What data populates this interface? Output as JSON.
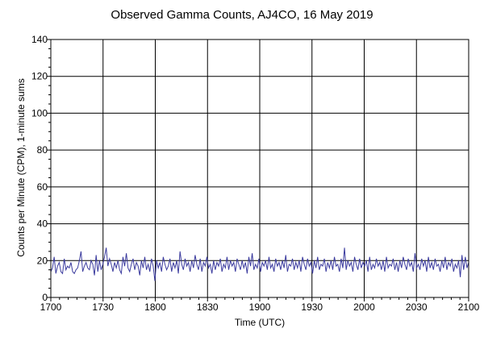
{
  "chart_data": {
    "type": "line",
    "title": "Observed Gamma Counts, AJ4CO, 16 May 2019",
    "xlabel": "Time (UTC)",
    "ylabel": "Counts per Minute (CPM), 1-minute sums",
    "x_tick_labels": [
      "1700",
      "1730",
      "1800",
      "1830",
      "1900",
      "1930",
      "2000",
      "2030",
      "2100"
    ],
    "y_tick_labels": [
      "0",
      "20",
      "40",
      "60",
      "80",
      "100",
      "120",
      "140"
    ],
    "xlim_minutes_after_1700": [
      0,
      240
    ],
    "ylim": [
      0,
      140
    ],
    "grid": true,
    "series_color": "#3b3b9e",
    "series": [
      {
        "values": [
          14,
          16,
          22,
          13,
          17,
          19,
          14,
          13,
          21,
          15,
          17,
          16,
          19,
          14,
          13,
          15,
          16,
          20,
          25,
          14,
          17,
          19,
          16,
          15,
          20,
          18,
          12,
          23,
          14,
          20,
          15,
          18,
          22,
          27,
          17,
          21,
          18,
          14,
          19,
          16,
          20,
          15,
          13,
          22,
          17,
          24,
          16,
          14,
          18,
          21,
          15,
          19,
          17,
          12,
          20,
          16,
          22,
          15,
          18,
          14,
          21,
          17,
          9,
          20,
          16,
          19,
          14,
          22,
          18,
          15,
          17,
          21,
          14,
          19,
          16,
          20,
          13,
          25,
          18,
          15,
          21,
          17,
          19,
          14,
          20,
          16,
          23,
          18,
          15,
          21,
          14,
          19,
          17,
          22,
          16,
          18,
          13,
          20,
          15,
          19,
          17,
          21,
          14,
          18,
          16,
          22,
          15,
          20,
          17,
          19,
          14,
          21,
          18,
          15,
          20,
          16,
          19,
          13,
          22,
          17,
          24,
          15,
          18,
          16,
          21,
          14,
          19,
          17,
          20,
          15,
          22,
          16,
          18,
          14,
          21,
          17,
          19,
          15,
          20,
          16,
          23,
          14,
          18,
          17,
          21,
          15,
          19,
          16,
          20,
          14,
          22,
          18,
          15,
          21,
          17,
          19,
          13,
          20,
          16,
          22,
          15,
          18,
          17,
          21,
          14,
          19,
          16,
          20,
          15,
          22,
          17,
          18,
          14,
          21,
          16,
          27,
          15,
          20,
          17,
          19,
          14,
          22,
          18,
          15,
          21,
          16,
          19,
          17,
          20,
          14,
          22,
          15,
          18,
          16,
          21,
          17,
          19,
          15,
          20,
          14,
          22,
          16,
          18,
          17,
          21,
          15,
          19,
          14,
          20,
          16,
          22,
          18,
          15,
          21,
          17,
          19,
          14,
          24,
          16,
          18,
          15,
          21,
          17,
          20,
          14,
          22,
          16,
          19,
          15,
          21,
          17,
          18,
          14,
          20,
          16,
          22,
          15,
          19,
          17,
          21,
          14,
          18,
          16,
          20,
          11,
          23,
          15,
          22,
          16,
          19
        ]
      }
    ]
  }
}
